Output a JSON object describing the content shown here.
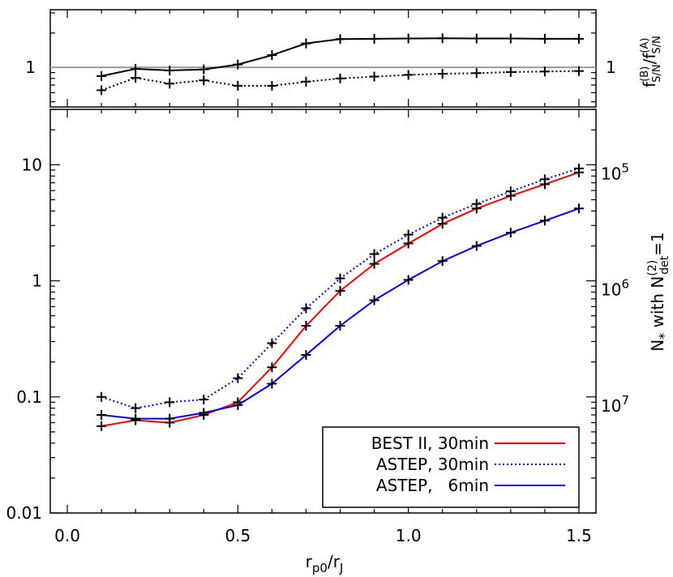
{
  "chart_data": [
    {
      "panel": "top-ratio",
      "type": "line",
      "yscale": "log",
      "ylim": [
        0.45,
        3.2
      ],
      "xlim": [
        -0.05,
        1.55
      ],
      "yticks": [
        {
          "v": 1,
          "label": "1"
        }
      ],
      "ylabel_right": "f(B)S/N / f(A)S/N",
      "reference_line": 1,
      "x": [
        0.1,
        0.2,
        0.3,
        0.4,
        0.5,
        0.6,
        0.7,
        0.8,
        0.9,
        1.0,
        1.1,
        1.2,
        1.3,
        1.4,
        1.5
      ],
      "series": [
        {
          "style": "solid",
          "color": "#000000",
          "values": [
            0.84,
            0.97,
            0.94,
            0.96,
            1.06,
            1.28,
            1.62,
            1.77,
            1.78,
            1.79,
            1.8,
            1.79,
            1.79,
            1.78,
            1.78
          ]
        },
        {
          "style": "dotted",
          "color": "#000000",
          "values": [
            0.63,
            0.81,
            0.72,
            0.77,
            0.69,
            0.69,
            0.75,
            0.8,
            0.83,
            0.86,
            0.88,
            0.89,
            0.91,
            0.92,
            0.93
          ]
        }
      ]
    },
    {
      "panel": "main",
      "type": "line",
      "yscale": "log",
      "ylim": [
        0.01,
        30
      ],
      "xlim": [
        -0.05,
        1.55
      ],
      "xticks": [
        {
          "v": 0.0,
          "label": "0.0"
        },
        {
          "v": 0.5,
          "label": "0.5"
        },
        {
          "v": 1.0,
          "label": "1.0"
        },
        {
          "v": 1.5,
          "label": "1.5"
        }
      ],
      "yticks": [
        {
          "v": 0.01,
          "label": "0.01"
        },
        {
          "v": 0.1,
          "label": "0.1"
        },
        {
          "v": 1,
          "label": "1"
        },
        {
          "v": 10,
          "label": "10"
        }
      ],
      "xlabel": "rp0/rJ",
      "ylabel_right": "N* with N(2)det=1",
      "right_ticks": [
        {
          "v": 10,
          "base": "10",
          "exp": "5"
        },
        {
          "v": 1,
          "base": "10",
          "exp": "6"
        },
        {
          "v": 0.1,
          "base": "10",
          "exp": "7"
        }
      ],
      "legend_position": "bottom-right",
      "x": [
        0.1,
        0.2,
        0.3,
        0.4,
        0.5,
        0.6,
        0.7,
        0.8,
        0.9,
        1.0,
        1.1,
        1.2,
        1.3,
        1.4,
        1.5
      ],
      "series": [
        {
          "name": "BEST II, 30min",
          "color": "#ff0000",
          "style": "solid",
          "values": [
            0.056,
            0.063,
            0.06,
            0.07,
            0.09,
            0.18,
            0.41,
            0.82,
            1.4,
            2.1,
            3.1,
            4.2,
            5.4,
            6.8,
            8.6
          ]
        },
        {
          "name": "ASTEP, 30min",
          "color": "#0000ff",
          "style": "dotted",
          "values": [
            0.1,
            0.08,
            0.09,
            0.095,
            0.145,
            0.29,
            0.58,
            1.05,
            1.7,
            2.5,
            3.5,
            4.6,
            5.9,
            7.5,
            9.3
          ]
        },
        {
          "name": "ASTEP,   6min",
          "color": "#0000ff",
          "style": "solid",
          "values": [
            0.07,
            0.065,
            0.065,
            0.073,
            0.085,
            0.13,
            0.23,
            0.41,
            0.68,
            1.02,
            1.48,
            2.0,
            2.6,
            3.3,
            4.2
          ]
        }
      ]
    }
  ]
}
